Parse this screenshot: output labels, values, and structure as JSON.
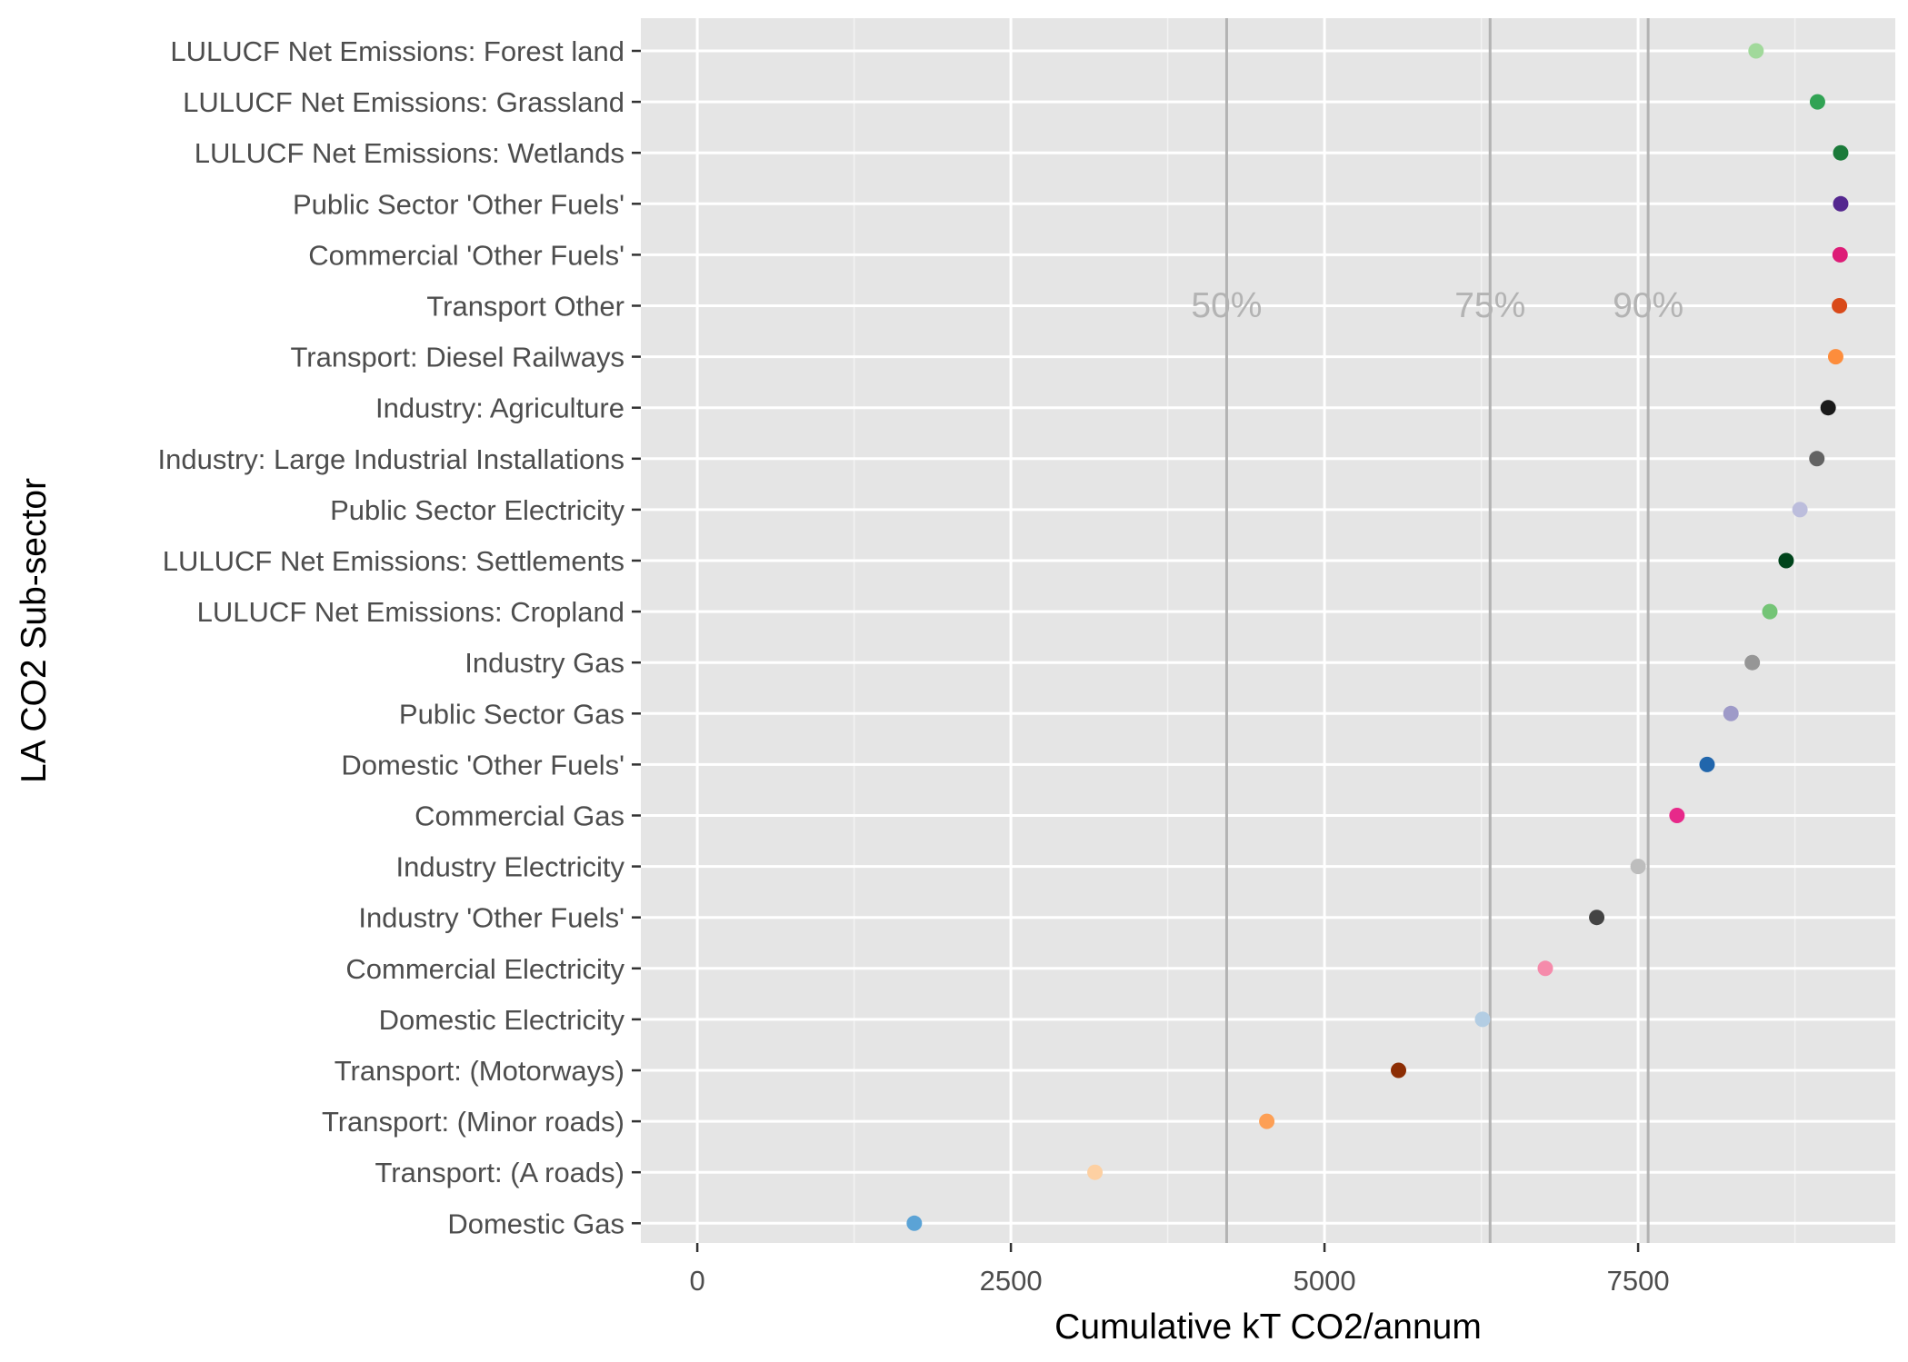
{
  "chart_data": {
    "type": "scatter",
    "xlabel": "Cumulative kT CO2/annum",
    "ylabel": "LA CO2 Sub-sector",
    "xlim": [
      -450,
      9550
    ],
    "x_ticks": [
      0,
      2500,
      5000,
      7500
    ],
    "x_tick_labels": [
      "0",
      "2500",
      "5000",
      "7500"
    ],
    "grid": true,
    "legend": "none",
    "reference_lines": [
      {
        "label": "50%",
        "x": 4220
      },
      {
        "label": "75%",
        "x": 6320
      },
      {
        "label": "90%",
        "x": 7580
      }
    ],
    "categories": [
      "LULUCF Net Emissions: Forest land",
      "LULUCF Net Emissions: Grassland",
      "LULUCF Net Emissions: Wetlands",
      "Public Sector 'Other Fuels'",
      "Commercial 'Other Fuels'",
      "Transport Other",
      "Transport: Diesel Railways",
      "Industry: Agriculture",
      "Industry: Large Industrial Installations",
      "Public Sector Electricity",
      "LULUCF Net Emissions: Settlements",
      "LULUCF Net Emissions: Cropland",
      "Industry Gas",
      "Public Sector Gas",
      "Domestic 'Other Fuels'",
      "Commercial Gas",
      "Industry Electricity",
      "Industry 'Other Fuels'",
      "Commercial Electricity",
      "Domestic Electricity",
      "Transport: (Motorways)",
      "Transport: (Minor roads)",
      "Transport: (A roads)",
      "Domestic Gas"
    ],
    "values": [
      8440,
      8930,
      9115,
      9115,
      9110,
      9105,
      9075,
      9015,
      8925,
      8790,
      8680,
      8550,
      8410,
      8240,
      8050,
      7810,
      7500,
      7170,
      6760,
      6260,
      5590,
      4540,
      3170,
      1730
    ],
    "colors": [
      "#a1d99b",
      "#31a354",
      "#1b7a3a",
      "#54278f",
      "#dd1c77",
      "#d94a1a",
      "#fd8d3c",
      "#1a1a1a",
      "#636363",
      "#bcbddc",
      "#00441b",
      "#74c476",
      "#969696",
      "#9e9ac8",
      "#2166ac",
      "#e7298a",
      "#bdbdbd",
      "#444444",
      "#f58bab",
      "#b3cde3",
      "#8c2d04",
      "#fd9f55",
      "#fdd0a2",
      "#5ba3d6"
    ]
  }
}
